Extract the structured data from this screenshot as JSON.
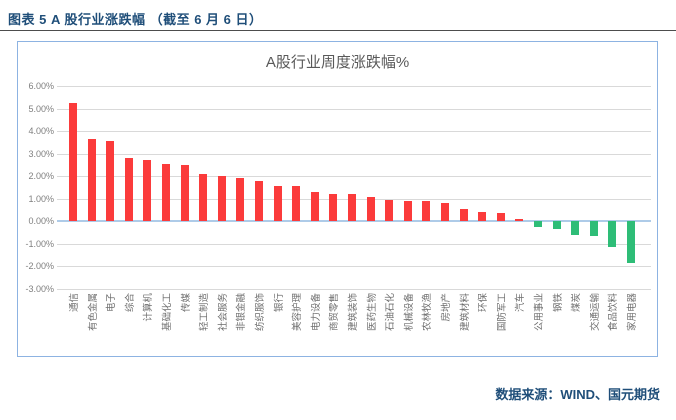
{
  "header": {
    "title": "图表 5 A 股行业涨跌幅 （截至 6 月 6 日）"
  },
  "source": {
    "label": "数据来源：WIND、国元期货"
  },
  "colors": {
    "header_text": "#1f4e79",
    "chart_border": "#8db3e2",
    "grid": "#d9d9d9",
    "zero_line": "#aecbe8",
    "axis_label": "#7f7f7f",
    "title_text": "#595959",
    "positive_bar": "#fb3b3b",
    "negative_bar": "#2ebd77"
  },
  "chart_data": {
    "type": "bar",
    "title": "A股行业周度涨跌幅%",
    "categories": [
      "通信",
      "有色金属",
      "电子",
      "综合",
      "计算机",
      "基础化工",
      "传媒",
      "轻工制造",
      "社会服务",
      "非银金融",
      "纺织服饰",
      "银行",
      "美容护理",
      "电力设备",
      "商贸零售",
      "建筑装饰",
      "医药生物",
      "石油石化",
      "机械设备",
      "农林牧渔",
      "房地产",
      "建筑材料",
      "环保",
      "国防军工",
      "汽车",
      "公用事业",
      "钢铁",
      "煤炭",
      "交通运输",
      "食品饮料",
      "家用电器"
    ],
    "values": [
      5.25,
      3.65,
      3.55,
      2.8,
      2.7,
      2.55,
      2.5,
      2.1,
      2.0,
      1.9,
      1.8,
      1.55,
      1.55,
      1.3,
      1.2,
      1.2,
      1.05,
      0.95,
      0.9,
      0.9,
      0.8,
      0.55,
      0.4,
      0.35,
      0.1,
      -0.25,
      -0.35,
      -0.6,
      -0.65,
      -1.15,
      -1.85
    ],
    "xlabel": "",
    "ylabel": "",
    "ylim": [
      -3,
      6
    ],
    "ytick_step": 1,
    "ytick_labels": [
      "6.00%",
      "5.00%",
      "4.00%",
      "3.00%",
      "2.00%",
      "1.00%",
      "0.00%",
      "-1.00%",
      "-2.00%",
      "-3.00%"
    ],
    "grid": true,
    "legend": "none",
    "positive_color": "#fb3b3b",
    "negative_color": "#2ebd77",
    "bar_orientation": "vertical",
    "x_label_rotation_deg": 90
  }
}
